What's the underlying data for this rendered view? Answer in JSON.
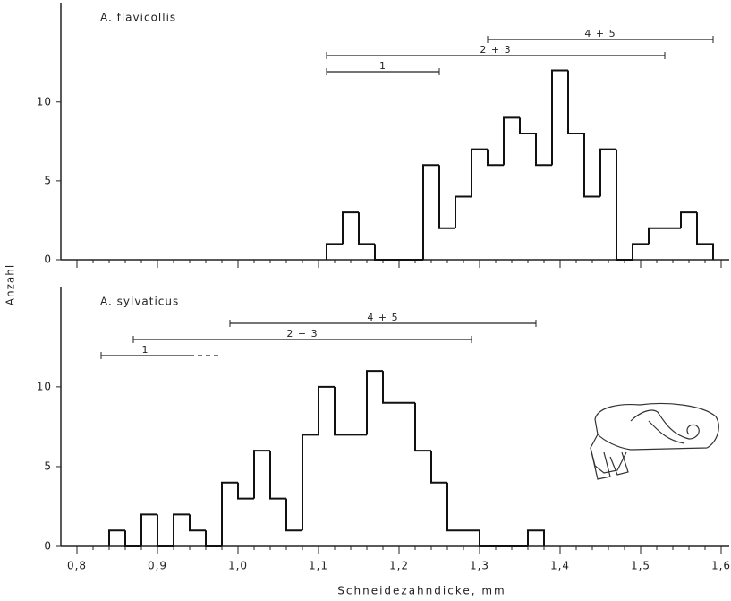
{
  "chart_data": [
    {
      "type": "histogram",
      "title": "A. flavicollis",
      "ylabel": "Anzahl",
      "bins": [
        1.11,
        1.13,
        1.15,
        1.17,
        1.19,
        1.21,
        1.23,
        1.25,
        1.27,
        1.29,
        1.31,
        1.33,
        1.35,
        1.37,
        1.39,
        1.41,
        1.43,
        1.45,
        1.47,
        1.49,
        1.51,
        1.53,
        1.55,
        1.57,
        1.59
      ],
      "values": [
        1,
        3,
        1,
        0,
        0,
        0,
        6,
        2,
        4,
        7,
        6,
        9,
        8,
        6,
        12,
        8,
        4,
        7,
        0,
        1,
        2,
        2,
        3,
        1
      ],
      "xlim": [
        0.78,
        1.61
      ],
      "ylim": [
        0,
        16
      ],
      "yticks": [
        0,
        5,
        10
      ],
      "color": "#111111",
      "ranges": [
        {
          "label": "1",
          "from": 1.11,
          "to": 1.25
        },
        {
          "label": "2 + 3",
          "from": 1.11,
          "to": 1.53
        },
        {
          "label": "4 + 5",
          "from": 1.31,
          "to": 1.59
        }
      ]
    },
    {
      "type": "histogram",
      "title": "A. sylvaticus",
      "xlabel": "Schneidezahndicke,  mm",
      "bins": [
        0.84,
        0.86,
        0.88,
        0.9,
        0.92,
        0.94,
        0.96,
        0.98,
        1.0,
        1.02,
        1.04,
        1.06,
        1.08,
        1.1,
        1.12,
        1.14,
        1.16,
        1.18,
        1.2,
        1.22,
        1.24,
        1.26,
        1.28,
        1.3,
        1.32,
        1.34,
        1.36,
        1.38
      ],
      "values": [
        1,
        0,
        2,
        0,
        2,
        1,
        0,
        4,
        3,
        6,
        3,
        1,
        7,
        10,
        7,
        7,
        11,
        9,
        9,
        6,
        4,
        1,
        1,
        0,
        0,
        0,
        1
      ],
      "xlim": [
        0.78,
        1.61
      ],
      "ylim": [
        0,
        16
      ],
      "yticks": [
        0,
        5,
        10
      ],
      "color": "#111111",
      "xticks": [
        {
          "value": 0.8,
          "label": "0,8"
        },
        {
          "value": 0.9,
          "label": "0,9"
        },
        {
          "value": 1.0,
          "label": "1,0"
        },
        {
          "value": 1.1,
          "label": "1,1"
        },
        {
          "value": 1.2,
          "label": "1,2"
        },
        {
          "value": 1.3,
          "label": "1,3"
        },
        {
          "value": 1.4,
          "label": "1,4"
        },
        {
          "value": 1.5,
          "label": "1,5"
        },
        {
          "value": 1.6,
          "label": "1,6"
        }
      ],
      "ranges": [
        {
          "label": "1",
          "from": 0.83,
          "to": 0.98,
          "dashed_from": 0.94
        },
        {
          "label": "2 + 3",
          "from": 0.87,
          "to": 1.29
        },
        {
          "label": "4 + 5",
          "from": 0.99,
          "to": 1.37
        }
      ]
    }
  ]
}
